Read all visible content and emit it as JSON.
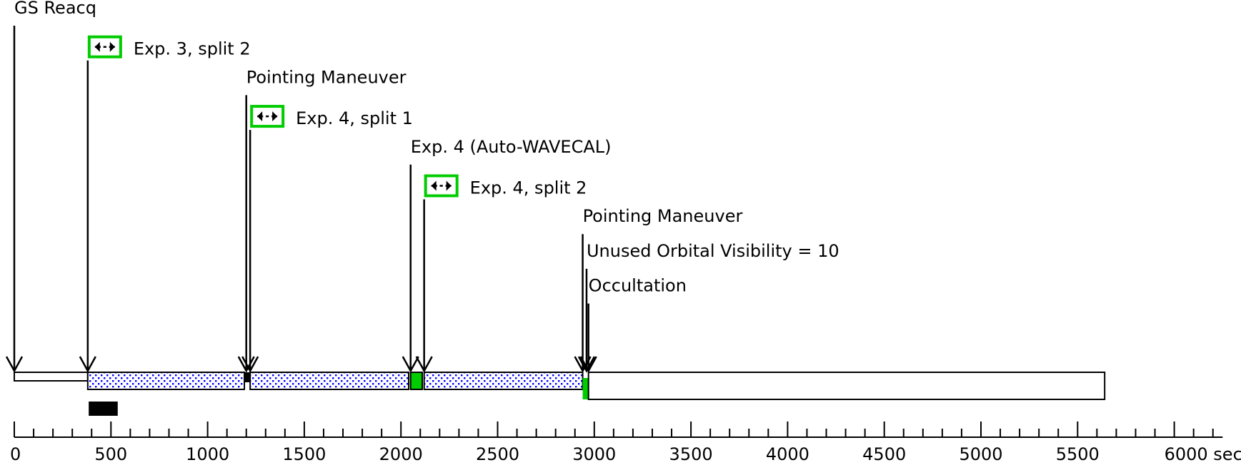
{
  "chart_data": {
    "type": "timeline",
    "x_unit_label": "6000 sec",
    "xlim": [
      0,
      6250
    ],
    "ticks": [
      {
        "value": 0,
        "label": "0"
      },
      {
        "value": 500,
        "label": "500"
      },
      {
        "value": 1000,
        "label": "1000"
      },
      {
        "value": 1500,
        "label": "1500"
      },
      {
        "value": 2000,
        "label": "2000"
      },
      {
        "value": 2500,
        "label": "2500"
      },
      {
        "value": 3000,
        "label": "3000"
      },
      {
        "value": 3500,
        "label": "3500"
      },
      {
        "value": 4000,
        "label": "4000"
      },
      {
        "value": 4500,
        "label": "4500"
      },
      {
        "value": 5000,
        "label": "5000"
      },
      {
        "value": 5500,
        "label": "5500"
      },
      {
        "value": 6000,
        "label": "6000 sec"
      }
    ],
    "minor_tick_step": 100,
    "events": [
      {
        "label": "GS Reacq",
        "time": 0,
        "icon": false
      },
      {
        "label": "Exp. 3, split 2",
        "time": 380,
        "icon": true
      },
      {
        "label": "Pointing Maneuver",
        "time": 1200,
        "icon": false
      },
      {
        "label": "Exp. 4, split 1",
        "time": 1220,
        "icon": true
      },
      {
        "label": "Exp. 4 (Auto-WAVECAL)",
        "time": 2050,
        "icon": false
      },
      {
        "label": "Exp. 4, split 2",
        "time": 2120,
        "icon": true
      },
      {
        "label": "Pointing Maneuver",
        "time": 2940,
        "icon": false
      },
      {
        "label": "Unused Orbital Visibility = 10",
        "time": 2960,
        "icon": false
      },
      {
        "label": "Occultation",
        "time": 2970,
        "icon": false
      }
    ],
    "segments": [
      {
        "start": 0,
        "end": 380,
        "kind": "guide-star-acquisition"
      },
      {
        "start": 380,
        "end": 1190,
        "kind": "exposure"
      },
      {
        "start": 1190,
        "end": 1220,
        "kind": "maneuver"
      },
      {
        "start": 1220,
        "end": 2040,
        "kind": "exposure"
      },
      {
        "start": 2050,
        "end": 2110,
        "kind": "wavecal"
      },
      {
        "start": 2120,
        "end": 2940,
        "kind": "exposure"
      },
      {
        "start": 2940,
        "end": 2970,
        "kind": "unused"
      },
      {
        "start": 2970,
        "end": 5640,
        "kind": "occultation"
      }
    ],
    "marker": {
      "start": 385,
      "end": 535
    },
    "colors": {
      "exposure_dots": "#0000ff",
      "wavecal": "#00cc00",
      "icon_border": "#00cc00",
      "outline": "#000000"
    },
    "icon_name": "double-arrow-icon"
  }
}
